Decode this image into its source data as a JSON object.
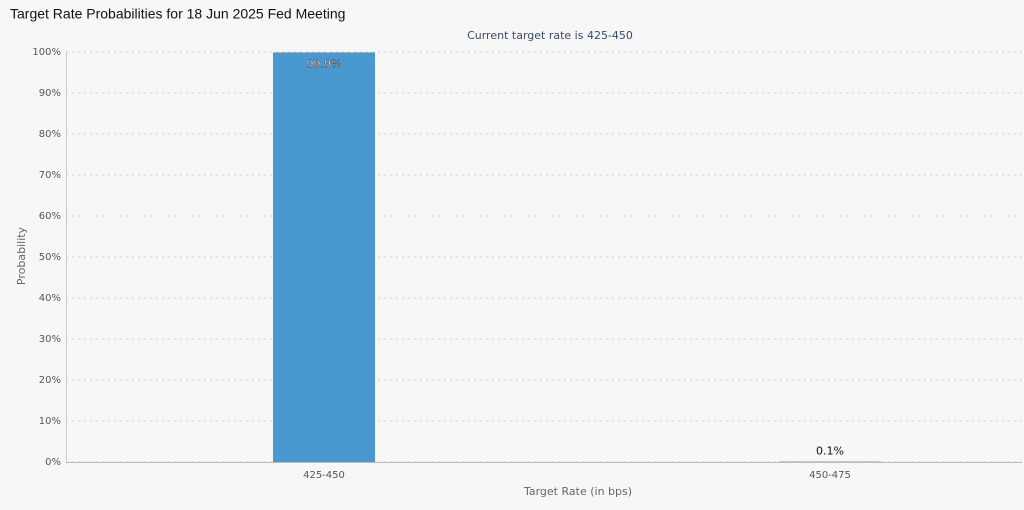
{
  "chart_data": {
    "type": "bar",
    "title": "Target Rate Probabilities for 18 Jun 2025 Fed Meeting",
    "subtitle": "Current target rate is 425-450",
    "x_label": "Target Rate (in bps)",
    "y_label": "Probability",
    "categories": [
      "425-450",
      "450-475"
    ],
    "values": [
      99.9,
      0.1
    ],
    "value_labels": [
      "99.9%",
      "0.1%"
    ],
    "color": "#4a98d0",
    "ylim": [
      0,
      100
    ],
    "yticks": [
      {
        "value": 0,
        "label": "0%"
      },
      {
        "value": 10,
        "label": "10%"
      },
      {
        "value": 20,
        "label": "20%"
      },
      {
        "value": 30,
        "label": "30%"
      },
      {
        "value": 40,
        "label": "40%"
      },
      {
        "value": 50,
        "label": "50%"
      },
      {
        "value": 60,
        "label": "60%"
      },
      {
        "value": 70,
        "label": "70%"
      },
      {
        "value": 80,
        "label": "80%"
      },
      {
        "value": 90,
        "label": "90%"
      },
      {
        "value": 100,
        "label": "100%"
      }
    ],
    "grid": true
  }
}
